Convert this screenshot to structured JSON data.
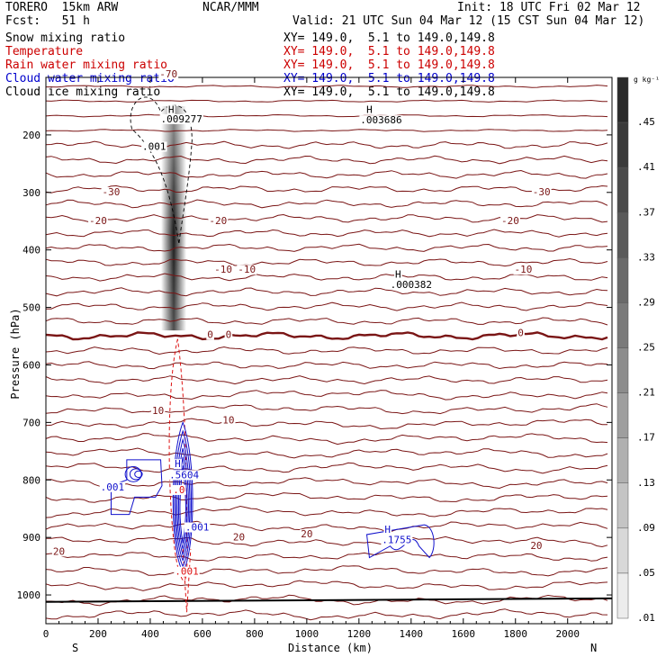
{
  "header": {
    "model": "TORERO  15km ARW",
    "org": "NCAR/MMM",
    "init": "Init: 18 UTC Fri 02 Mar 12",
    "fcst": "Fcst:   51 h",
    "valid": "Valid: 21 UTC Sun 04 Mar 12 (15 CST Sun 04 Mar 12)"
  },
  "fields": [
    {
      "name": "Snow mixing ratio",
      "xy": "XY= 149.0,  5.1 to 149.0,149.8",
      "color": "#000000"
    },
    {
      "name": "Temperature",
      "xy": "XY= 149.0,  5.1 to 149.0,149.8",
      "color": "#cc0000"
    },
    {
      "name": "Rain water mixing ratio",
      "xy": "XY= 149.0,  5.1 to 149.0,149.8",
      "color": "#cc0000"
    },
    {
      "name": "Cloud water mixing ratio",
      "xy": "XY= 149.0,  5.1 to 149.0,149.8",
      "color": "#0000cc"
    },
    {
      "name": "Cloud ice mixing ratio",
      "xy": "XY= 149.0,  5.1 to 149.0,149.8",
      "color": "#000000"
    }
  ],
  "colors": {
    "temperature": "#7a1515",
    "zero_isotherm": "#7a1515",
    "rain": "#dd1111",
    "cloud_water": "#1111cc",
    "cloud_ice": "#000000",
    "terrain": "#000000"
  },
  "chart_data": {
    "type": "heatmap",
    "title": "",
    "xlabel": "Distance (km)",
    "ylabel": "Pressure (hPa)",
    "xlim": [
      0,
      2170
    ],
    "ylim": [
      1050,
      100
    ],
    "x_ticks": [
      0,
      200,
      400,
      600,
      800,
      1000,
      1200,
      1400,
      1600,
      1800,
      2000
    ],
    "y_ticks": [
      200,
      300,
      400,
      500,
      600,
      700,
      800,
      900,
      1000
    ],
    "x_end_labels": {
      "left": "S",
      "right": "N"
    },
    "colorbar": {
      "unit": "g kg⁻¹",
      "ticks": [
        ".45",
        ".41",
        ".37",
        ".33",
        ".29",
        ".25",
        ".21",
        ".17",
        ".13",
        ".09",
        ".05",
        ".01"
      ],
      "grays": [
        "#2a2a2a",
        "#3a3a3a",
        "#4a4a4a",
        "#5a5a5a",
        "#6a6a6a",
        "#7a7a7a",
        "#8c8c8c",
        "#9e9e9e",
        "#b0b0b0",
        "#c4c4c4",
        "#d8d8d8",
        "#ececec"
      ]
    },
    "snow_column": {
      "x_km": 490,
      "p_top": 150,
      "p_bottom": 540,
      "p_max": 330,
      "max_g_kg": 0.45
    },
    "temperature_contours": [
      {
        "label": "-70",
        "p": 160
      },
      {
        "label": "-30",
        "p": 305
      },
      {
        "label": "-20",
        "p": 355
      },
      {
        "label": "-10",
        "p": 440
      },
      {
        "label": "0",
        "p": 552
      },
      {
        "label": "10",
        "p": 695
      },
      {
        "label": "20",
        "p": 910
      }
    ],
    "contour_labels": [
      {
        "text": "-70",
        "x": 470,
        "p": 100,
        "kind": "temp"
      },
      {
        "text": "-30",
        "x": 250,
        "p": 305,
        "kind": "temp"
      },
      {
        "text": "-30",
        "x": 1900,
        "p": 305,
        "kind": "temp"
      },
      {
        "text": "-20",
        "x": 200,
        "p": 355,
        "kind": "temp"
      },
      {
        "text": "-20",
        "x": 660,
        "p": 355,
        "kind": "temp"
      },
      {
        "text": "-20",
        "x": 1780,
        "p": 355,
        "kind": "temp"
      },
      {
        "text": "-10",
        "x": 680,
        "p": 440,
        "kind": "temp"
      },
      {
        "text": "-10",
        "x": 770,
        "p": 440,
        "kind": "temp"
      },
      {
        "text": "-10",
        "x": 1830,
        "p": 440,
        "kind": "temp"
      },
      {
        "text": "0",
        "x": 630,
        "p": 553,
        "kind": "temp"
      },
      {
        "text": "0",
        "x": 700,
        "p": 553,
        "kind": "temp"
      },
      {
        "text": "0",
        "x": 1820,
        "p": 550,
        "kind": "temp"
      },
      {
        "text": "10",
        "x": 430,
        "p": 685,
        "kind": "temp"
      },
      {
        "text": "10",
        "x": 700,
        "p": 702,
        "kind": "temp"
      },
      {
        "text": "20",
        "x": 50,
        "p": 930,
        "kind": "temp"
      },
      {
        "text": "20",
        "x": 740,
        "p": 905,
        "kind": "temp"
      },
      {
        "text": "20",
        "x": 1000,
        "p": 900,
        "kind": "temp"
      },
      {
        "text": "20",
        "x": 1880,
        "p": 920,
        "kind": "temp"
      },
      {
        "text": "H",
        "x": 480,
        "p": 162,
        "kind": "ice"
      },
      {
        "text": ".009277",
        "x": 520,
        "p": 178,
        "kind": "ice"
      },
      {
        "text": ".001",
        "x": 415,
        "p": 226,
        "kind": "ice"
      },
      {
        "text": "H",
        "x": 1240,
        "p": 162,
        "kind": "ice"
      },
      {
        "text": ".003686",
        "x": 1285,
        "p": 180,
        "kind": "ice"
      },
      {
        "text": "H",
        "x": 1350,
        "p": 448,
        "kind": "ice"
      },
      {
        "text": ".000382",
        "x": 1400,
        "p": 466,
        "kind": "ice"
      },
      {
        "text": ".001",
        "x": 255,
        "p": 818,
        "kind": "cloud"
      },
      {
        "text": "H",
        "x": 505,
        "p": 778,
        "kind": "cloud"
      },
      {
        "text": ".5604",
        "x": 530,
        "p": 797,
        "kind": "cloud"
      },
      {
        "text": ".001",
        "x": 580,
        "p": 888,
        "kind": "cloud"
      },
      {
        "text": "H",
        "x": 1310,
        "p": 892,
        "kind": "cloud"
      },
      {
        "text": ".1755",
        "x": 1345,
        "p": 910,
        "kind": "cloud"
      },
      {
        "text": ".001",
        "x": 540,
        "p": 965,
        "kind": "rain"
      },
      {
        "text": ".0",
        "x": 510,
        "p": 823,
        "kind": "rain"
      }
    ]
  }
}
